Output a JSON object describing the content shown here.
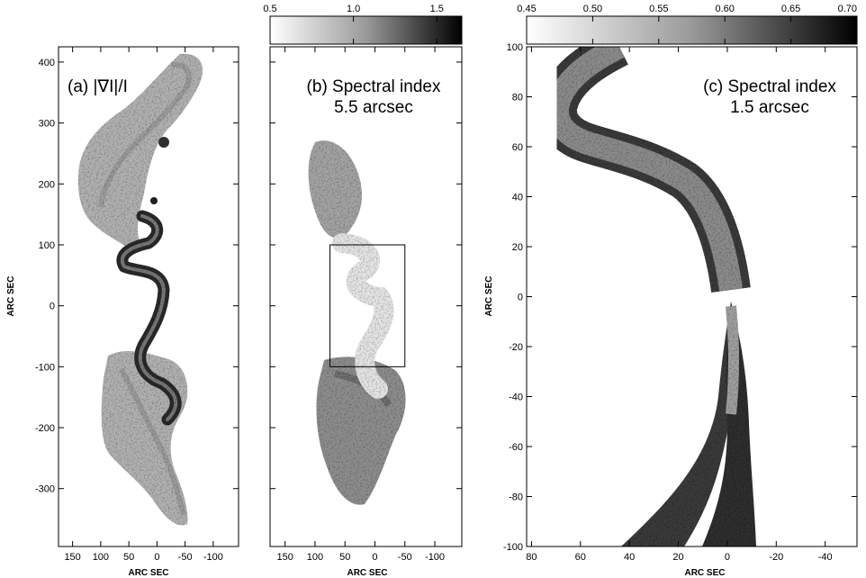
{
  "figure": {
    "panels": [
      {
        "id": "a",
        "title_lines": [
          "(a) |∇I|/I"
        ],
        "xlabel": "ARC SEC",
        "ylabel": "ARC SEC",
        "xlim": [
          175,
          -145
        ],
        "ylim": [
          -395,
          425
        ],
        "xticks": [
          150,
          100,
          50,
          0,
          -50,
          -100
        ],
        "yticks": [
          400,
          300,
          200,
          100,
          0,
          -100,
          -200,
          -300
        ],
        "xtick_labels": [
          "150",
          "100",
          "50",
          "0",
          "-50",
          "-100"
        ],
        "ytick_labels": [
          "400",
          "300",
          "200",
          "100",
          "0",
          "-100",
          "-200",
          "-300"
        ]
      },
      {
        "id": "b",
        "title_lines": [
          "(b) Spectral index",
          "5.5 arcsec"
        ],
        "xlabel": "ARC SEC",
        "xlim": [
          175,
          -145
        ],
        "ylim": [
          -395,
          425
        ],
        "xticks": [
          150,
          100,
          50,
          0,
          -50,
          -100
        ],
        "xtick_labels": [
          "150",
          "100",
          "50",
          "0",
          "-50",
          "-100"
        ],
        "colorbar": {
          "range": [
            0.5,
            1.65
          ],
          "ticks": [
            0.5,
            1.0,
            1.5
          ],
          "tick_labels": [
            "0.5",
            "1.0",
            "1.5"
          ]
        },
        "inset_box": {
          "x": [
            75,
            -50
          ],
          "y": [
            -100,
            100
          ]
        }
      },
      {
        "id": "c",
        "title_lines": [
          "(c) Spectral index",
          "1.5 arcsec"
        ],
        "xlabel": "ARC SEC",
        "ylabel": "ARC SEC",
        "xlim": [
          82,
          -53
        ],
        "ylim": [
          -100,
          100
        ],
        "xticks": [
          80,
          60,
          40,
          20,
          0,
          -20,
          -40
        ],
        "yticks": [
          100,
          80,
          60,
          40,
          20,
          0,
          -20,
          -40,
          -60,
          -80,
          -100
        ],
        "xtick_labels": [
          "80",
          "60",
          "40",
          "20",
          "0",
          "-20",
          "-40"
        ],
        "ytick_labels": [
          "100",
          "80",
          "60",
          "40",
          "20",
          "0",
          "-20",
          "-40",
          "-60",
          "-80",
          "-100"
        ],
        "colorbar": {
          "range": [
            0.45,
            0.7
          ],
          "ticks": [
            0.45,
            0.5,
            0.55,
            0.6,
            0.65,
            0.7
          ],
          "tick_labels": [
            "0.45",
            "0.50",
            "0.55",
            "0.60",
            "0.65",
            "0.70"
          ]
        }
      }
    ]
  }
}
